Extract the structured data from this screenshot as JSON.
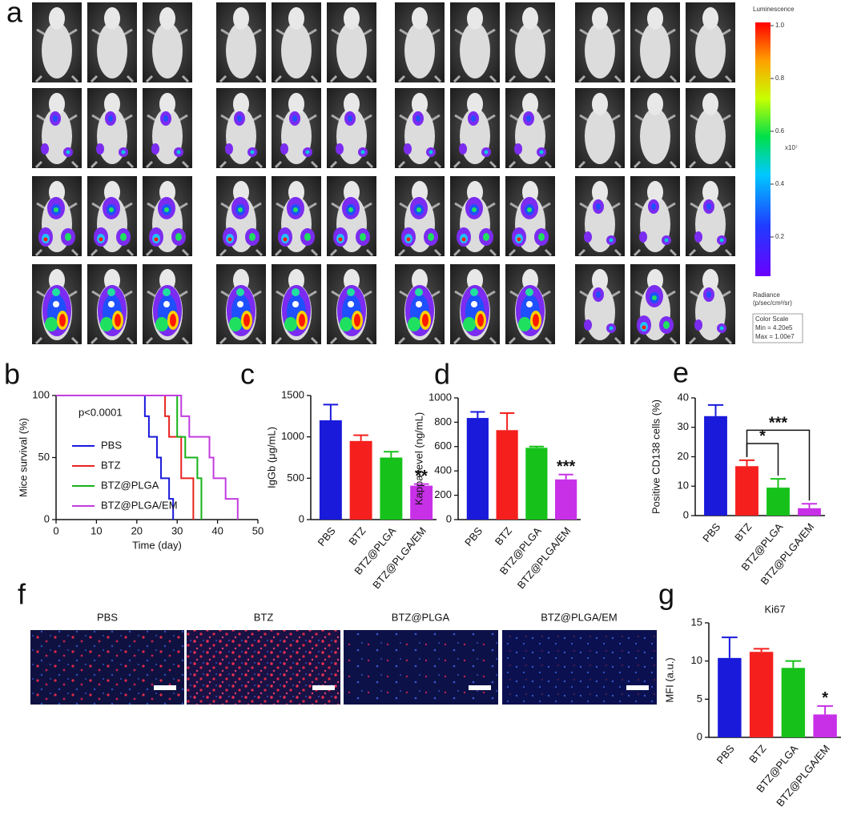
{
  "panel_a": {
    "label": "a"
  },
  "colorbar": {
    "title": "Luminescence",
    "ticks": [
      {
        "value": 1,
        "label": "1.0"
      },
      0.8,
      0.6,
      0.4,
      0.2
    ],
    "multiplier": "x10⁷",
    "unit_title": "Radiance",
    "unit": "(p/sec/cm²/sr)",
    "scale_title": "Color Scale",
    "min": "Min = 4.20e5",
    "max": "Max = 1.00e7"
  },
  "panel_f": {
    "label": "f",
    "titles": [
      "PBS",
      "BTZ",
      "BTZ@PLGA",
      "BTZ@PLGA/EM"
    ]
  },
  "chart_data": [
    {
      "type": "step",
      "label": "b",
      "xlabel": "Time (day)",
      "ylabel": "Mice survival (%)",
      "annotation": "p<0.0001",
      "xlim": [
        0,
        50
      ],
      "xticks": [
        0,
        10,
        20,
        30,
        40,
        50
      ],
      "ylim": [
        0,
        100
      ],
      "yticks": [
        0,
        50,
        100
      ],
      "series": [
        {
          "name": "PBS",
          "color": "#1a1adb",
          "x": [
            0,
            22,
            23,
            25,
            26,
            28,
            29
          ],
          "values": [
            100,
            83.3,
            66.7,
            50,
            33.3,
            16.7,
            0
          ]
        },
        {
          "name": "BTZ",
          "color": "#e8231f",
          "x": [
            0,
            27,
            28,
            31,
            34
          ],
          "values": [
            100,
            83.3,
            66.7,
            33.3,
            0
          ]
        },
        {
          "name": "BTZ@PLGA",
          "color": "#17b21a",
          "x": [
            0,
            30,
            32,
            35,
            36
          ],
          "values": [
            100,
            66.7,
            50,
            33.3,
            0
          ]
        },
        {
          "name": "BTZ@PLGA/EM",
          "color": "#c23ce0",
          "x": [
            0,
            31,
            33,
            38,
            39,
            42,
            45
          ],
          "values": [
            100,
            83.3,
            66.7,
            50,
            33.3,
            16.7,
            0
          ]
        }
      ]
    },
    {
      "type": "bar",
      "label": "c",
      "ylabel": "IgGb (μg/mL)",
      "categories": [
        "PBS",
        "BTZ",
        "BTZ@PLGA",
        "BTZ@PLGA/EM"
      ],
      "values": [
        1200,
        950,
        750,
        410
      ],
      "errors": [
        190,
        70,
        70,
        20
      ],
      "colors": [
        "#1a1adb",
        "#f5201e",
        "#16c21a",
        "#c830e8"
      ],
      "ylim": [
        0,
        1500
      ],
      "yticks": [
        0,
        500,
        1000,
        1500
      ],
      "annotations": [
        "**"
      ]
    },
    {
      "type": "bar",
      "label": "d",
      "ylabel": "Kappa level (ng/mL)",
      "categories": [
        "PBS",
        "BTZ",
        "BTZ@PLGA",
        "BTZ@PLGA/EM"
      ],
      "values": [
        835,
        735,
        590,
        330
      ],
      "errors": [
        50,
        140,
        10,
        40
      ],
      "colors": [
        "#1a1adb",
        "#f5201e",
        "#16c21a",
        "#c830e8"
      ],
      "ylim": [
        0,
        1000
      ],
      "yticks": [
        0,
        200,
        400,
        600,
        800,
        1000
      ],
      "annotations": [
        "***"
      ]
    },
    {
      "type": "bar",
      "label": "e",
      "ylabel": "Positive CD138 cells (%)",
      "categories": [
        "PBS",
        "BTZ",
        "BTZ@PLGA",
        "BTZ@PLGA/EM"
      ],
      "values": [
        33.8,
        16.8,
        9.5,
        2.5
      ],
      "errors": [
        3.8,
        2,
        3,
        1.5
      ],
      "colors": [
        "#1a1adb",
        "#f5201e",
        "#16c21a",
        "#c830e8"
      ],
      "ylim": [
        0,
        40
      ],
      "yticks": [
        0,
        10,
        20,
        30,
        40
      ],
      "annotations": [
        "*",
        "***"
      ]
    },
    {
      "type": "bar",
      "label": "g",
      "title": "Ki67",
      "ylabel": "MFI (a.u.)",
      "categories": [
        "PBS",
        "BTZ",
        "BTZ@PLGA",
        "BTZ@PLGA/EM"
      ],
      "values": [
        10.4,
        11.2,
        9.1,
        3.0
      ],
      "errors": [
        2.7,
        0.4,
        0.9,
        1.1
      ],
      "colors": [
        "#1a1adb",
        "#f5201e",
        "#16c21a",
        "#c830e8"
      ],
      "ylim": [
        0,
        15
      ],
      "yticks": [
        0,
        5,
        10,
        15
      ],
      "annotations": [
        "*"
      ]
    }
  ]
}
